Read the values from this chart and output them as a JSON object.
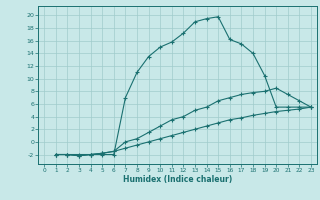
{
  "xlabel": "Humidex (Indice chaleur)",
  "bg_color": "#c8e8e8",
  "line_color": "#1a7070",
  "xlim": [
    -0.5,
    23.5
  ],
  "ylim": [
    -3.5,
    21.5
  ],
  "xticks": [
    0,
    1,
    2,
    3,
    4,
    5,
    6,
    7,
    8,
    9,
    10,
    11,
    12,
    13,
    14,
    15,
    16,
    17,
    18,
    19,
    20,
    21,
    22,
    23
  ],
  "yticks": [
    -2,
    0,
    2,
    4,
    6,
    8,
    10,
    12,
    14,
    16,
    18,
    20
  ],
  "line1_x": [
    1,
    2,
    3,
    4,
    5,
    6,
    7,
    8,
    9,
    10,
    11,
    12,
    13,
    14,
    15,
    16,
    17,
    18,
    19,
    20,
    21,
    22,
    23
  ],
  "line1_y": [
    -2,
    -2,
    -2,
    -2,
    -2,
    -2,
    7,
    11,
    13.5,
    15,
    15.8,
    17.2,
    19.0,
    19.5,
    19.8,
    16.2,
    15.5,
    14.0,
    10.5,
    5.5,
    5.5,
    5.5,
    5.5
  ],
  "line2_x": [
    1,
    2,
    3,
    4,
    5,
    6,
    7,
    8,
    9,
    10,
    11,
    12,
    13,
    14,
    15,
    16,
    17,
    18,
    19,
    20,
    21,
    22,
    23
  ],
  "line2_y": [
    -2,
    -2,
    -2.2,
    -2,
    -1.8,
    -1.5,
    0.0,
    0.5,
    1.5,
    2.5,
    3.5,
    4.0,
    5.0,
    5.5,
    6.5,
    7.0,
    7.5,
    7.8,
    8.0,
    8.5,
    7.5,
    6.5,
    5.5
  ],
  "line3_x": [
    1,
    2,
    3,
    4,
    5,
    6,
    7,
    8,
    9,
    10,
    11,
    12,
    13,
    14,
    15,
    16,
    17,
    18,
    19,
    20,
    21,
    22,
    23
  ],
  "line3_y": [
    -2,
    -2,
    -2.2,
    -2,
    -1.8,
    -1.5,
    -1.0,
    -0.5,
    0.0,
    0.5,
    1.0,
    1.5,
    2.0,
    2.5,
    3.0,
    3.5,
    3.8,
    4.2,
    4.5,
    4.8,
    5.0,
    5.2,
    5.5
  ],
  "grid_color": "#a0cccc",
  "marker": "+"
}
